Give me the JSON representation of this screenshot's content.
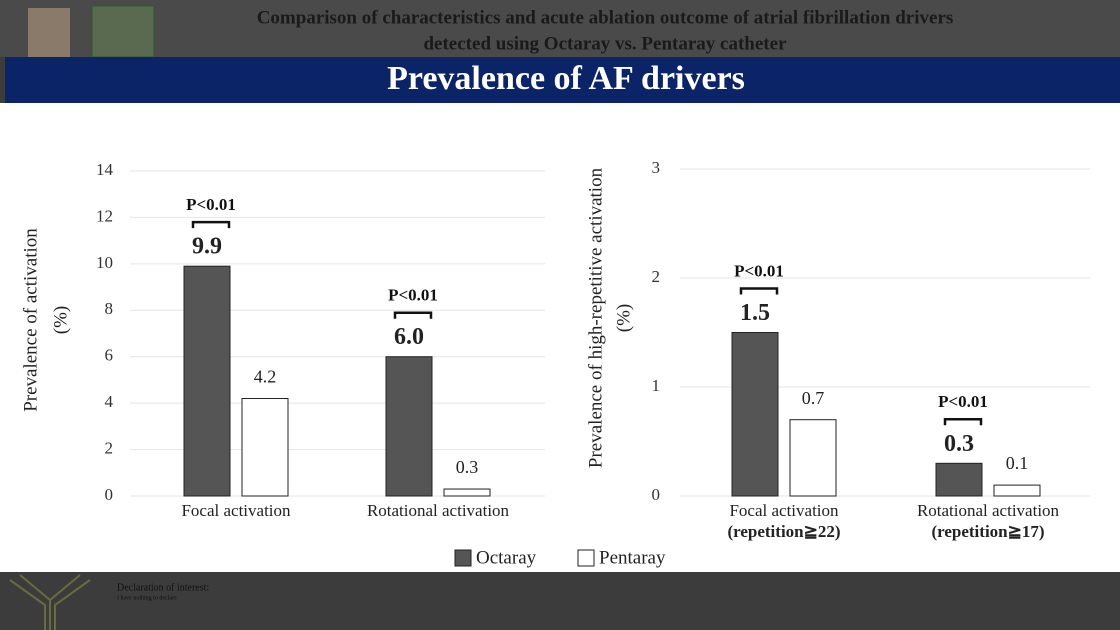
{
  "header": {
    "title_line1": "Comparison of characteristics and acute ablation outcome of atrial fibrillation drivers",
    "title_line2": "detected using Octaray vs. Pentaray catheter",
    "banner": "Prevalence of AF drivers"
  },
  "chart_data": [
    {
      "type": "bar",
      "ylabel": [
        "Prevalence of  activation",
        "(%)"
      ],
      "categories": [
        "Focal activation",
        "Rotational activation"
      ],
      "p_values": [
        "P<0.01",
        "P<0.01"
      ],
      "series": [
        {
          "name": "Octaray",
          "color": "#555555",
          "values": [
            9.9,
            6.0
          ],
          "value_labels": [
            "9.9",
            "6.0"
          ]
        },
        {
          "name": "Pentaray",
          "color": "#ffffff",
          "values": [
            4.2,
            0.3
          ]
        }
      ],
      "ylim": [
        0,
        14
      ],
      "yticks": [
        0,
        2,
        4,
        6,
        8,
        10,
        12,
        14
      ],
      "grid": true
    },
    {
      "type": "bar",
      "ylabel": [
        "Prevalence of high-repetitive activation",
        "(%)"
      ],
      "categories": [
        "Focal activation",
        "Rotational activation"
      ],
      "category_notes": [
        "(repetition≧22)",
        "(repetition≧17)"
      ],
      "p_values": [
        "P<0.01",
        "P<0.01"
      ],
      "series": [
        {
          "name": "Octaray",
          "color": "#555555",
          "values": [
            1.5,
            0.3
          ]
        },
        {
          "name": "Pentaray",
          "color": "#ffffff",
          "values": [
            0.7,
            0.1
          ]
        }
      ],
      "ylim": [
        0,
        3
      ],
      "yticks": [
        0,
        1,
        2,
        3
      ],
      "grid": true
    }
  ],
  "footer": {
    "declaration": "Declaration of interest:",
    "statement": "I have nothing to declare"
  }
}
